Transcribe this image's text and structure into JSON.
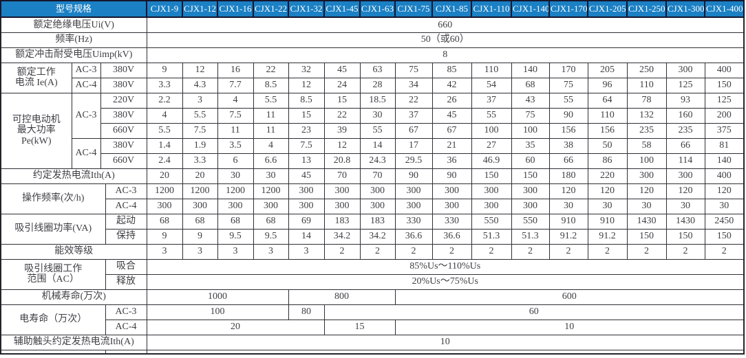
{
  "meta": {
    "description_colors": {
      "header_cell_blue": "#1b80c4",
      "header_gap_dark": "#15152b",
      "grid_border": "#2e2e34",
      "body_text": "#3f3f44",
      "page_bg": "#ffffff"
    }
  },
  "table": {
    "corner_label": "型号规格",
    "models": [
      "CJX1-9",
      "CJX1-12",
      "CJX1-16",
      "CJX1-22",
      "CJX1-32",
      "CJX1-45",
      "CJX1-63",
      "CJX1-75",
      "CJX1-85",
      "CJX1-110",
      "CJX1-140",
      "CJX1-170",
      "CJX1-205",
      "CJX1-250",
      "CJX1-300",
      "CJX1-400"
    ],
    "rows": [
      {
        "cells": [
          {
            "t": "额定绝缘电压Ui(V)",
            "cs": 4,
            "y": "label"
          },
          {
            "t": "660",
            "cs": 16,
            "y": "data"
          }
        ]
      },
      {
        "cells": [
          {
            "t": "频率(Hz)",
            "cs": 4,
            "y": "label"
          },
          {
            "t": "50（或60）",
            "cs": 16,
            "y": "data"
          }
        ]
      },
      {
        "cells": [
          {
            "t": "额定冲击耐受电压Uimp(kV)",
            "cs": 4,
            "y": "label"
          },
          {
            "t": "8",
            "cs": 16,
            "y": "data"
          }
        ]
      },
      {
        "cells": [
          {
            "t": "额定工作\n电流 Ie(A)",
            "rs": 2,
            "y": "label"
          },
          {
            "t": "AC-3",
            "y": "sub"
          },
          {
            "t": "380V",
            "cs": 2,
            "y": "sub"
          },
          "9",
          "12",
          "16",
          "22",
          "32",
          "45",
          "63",
          "75",
          "85",
          "110",
          "140",
          "170",
          "205",
          "250",
          "300",
          "400"
        ]
      },
      {
        "cells": [
          {
            "t": "AC-4",
            "y": "sub"
          },
          {
            "t": "380V",
            "cs": 2,
            "y": "sub"
          },
          "3.3",
          "4.3",
          "7.7",
          "8.5",
          "12",
          "24",
          "28",
          "34",
          "42",
          "54",
          "68",
          "75",
          "96",
          "110",
          "125",
          "150"
        ]
      },
      {
        "cells": [
          {
            "t": "可控电动机\n最大功率\nPe(kW)",
            "rs": 5,
            "y": "label"
          },
          {
            "t": "AC-3",
            "rs": 3,
            "y": "sub"
          },
          {
            "t": "220V",
            "cs": 2,
            "y": "sub"
          },
          "2.2",
          "3",
          "4",
          "5.5",
          "8.5",
          "15",
          "18.5",
          "22",
          "26",
          "37",
          "43",
          "55",
          "64",
          "78",
          "93",
          "125"
        ]
      },
      {
        "cells": [
          {
            "t": "380V",
            "cs": 2,
            "y": "sub"
          },
          "4",
          "5.5",
          "7.5",
          "11",
          "15",
          "22",
          "30",
          "37",
          "45",
          "55",
          "75",
          "90",
          "110",
          "132",
          "160",
          "200"
        ]
      },
      {
        "cells": [
          {
            "t": "660V",
            "cs": 2,
            "y": "sub"
          },
          "5.5",
          "7.5",
          "11",
          "11",
          "23",
          "39",
          "55",
          "67",
          "67",
          "100",
          "100",
          "156",
          "156",
          "235",
          "235",
          "375"
        ]
      },
      {
        "cells": [
          {
            "t": "AC-4",
            "rs": 2,
            "y": "sub"
          },
          {
            "t": "380V",
            "cs": 2,
            "y": "sub"
          },
          "1.4",
          "1.9",
          "3.5",
          "4",
          "7.5",
          "12",
          "14",
          "17",
          "21",
          "27",
          "35",
          "38",
          "50",
          "58",
          "66",
          "81"
        ]
      },
      {
        "cells": [
          {
            "t": "660V",
            "cs": 2,
            "y": "sub"
          },
          "2.4",
          "3.3",
          "6",
          "6.6",
          "13",
          "20.8",
          "24.3",
          "29.5",
          "36",
          "46.9",
          "60",
          "66",
          "86",
          "100",
          "114",
          "140"
        ]
      },
      {
        "cells": [
          {
            "t": "约定发热电流Ith(A)",
            "cs": 4,
            "y": "label"
          },
          "20",
          "20",
          "30",
          "30",
          "45",
          "70",
          "70",
          "90",
          "90",
          "150",
          "150",
          "180",
          "220",
          "300",
          "300",
          "400"
        ]
      },
      {
        "cells": [
          {
            "t": "操作频率(次/h)",
            "cs": 3,
            "rs": 2,
            "y": "label"
          },
          {
            "t": "AC-3",
            "y": "sub"
          },
          "1200",
          "1200",
          "1200",
          "1200",
          "300",
          "300",
          "300",
          "300",
          "300",
          "300",
          "300",
          "120",
          "120",
          "120",
          "120",
          "120"
        ]
      },
      {
        "cells": [
          {
            "t": "AC-4",
            "y": "sub"
          },
          "300",
          "300",
          "300",
          "300",
          "300",
          "300",
          "300",
          "300",
          "300",
          "300",
          "300",
          "30",
          "30",
          "30",
          "30",
          "30"
        ]
      },
      {
        "cells": [
          {
            "t": "吸引线圈功率(VA)",
            "cs": 3,
            "rs": 2,
            "y": "label"
          },
          {
            "t": "起动",
            "y": "sub"
          },
          "68",
          "68",
          "68",
          "68",
          "69",
          "183",
          "183",
          "330",
          "330",
          "550",
          "550",
          "910",
          "910",
          "1430",
          "1430",
          "2450"
        ]
      },
      {
        "cells": [
          {
            "t": "保持",
            "y": "sub"
          },
          "9",
          "9",
          "9.5",
          "9.5",
          "14",
          "34.2",
          "34.2",
          "36.6",
          "36.6",
          "51.3",
          "51.3",
          "91.2",
          "91.2",
          "150",
          "150",
          "150"
        ]
      },
      {
        "cells": [
          {
            "t": "能效等级",
            "cs": 4,
            "y": "label"
          },
          "3",
          "3",
          "3",
          "3",
          "3",
          "2",
          "2",
          "2",
          "2",
          "2",
          "2",
          "2",
          "2",
          "2",
          "2",
          "2"
        ]
      },
      {
        "cells": [
          {
            "t": "吸引线圈工作\n范围（AC）",
            "cs": 3,
            "rs": 2,
            "y": "label"
          },
          {
            "t": "吸合",
            "y": "sub"
          },
          {
            "t": "85%Us～110%Us",
            "cs": 16,
            "y": "data"
          }
        ]
      },
      {
        "cells": [
          {
            "t": "释放",
            "y": "sub"
          },
          {
            "t": "20%Us～75%Us",
            "cs": 16,
            "y": "data"
          }
        ]
      },
      {
        "cells": [
          {
            "t": "机械寿命(万次)",
            "cs": 4,
            "y": "label"
          },
          {
            "t": "1000",
            "cs": 4,
            "y": "data"
          },
          {
            "t": "800",
            "cs": 3,
            "y": "data"
          },
          {
            "t": "600",
            "cs": 9,
            "y": "data"
          }
        ]
      },
      {
        "cells": [
          {
            "t": "电寿命（万次）",
            "cs": 3,
            "rs": 2,
            "y": "label"
          },
          {
            "t": "AC-3",
            "y": "sub"
          },
          {
            "t": "100",
            "cs": 4,
            "y": "data"
          },
          {
            "t": "80",
            "cs": 1,
            "y": "data"
          },
          {
            "t": "60",
            "cs": 11,
            "y": "data"
          }
        ]
      },
      {
        "cells": [
          {
            "t": "AC-4",
            "y": "sub"
          },
          {
            "t": "20",
            "cs": 5,
            "y": "data"
          },
          {
            "t": "15",
            "cs": 2,
            "y": "data"
          },
          {
            "t": "10",
            "cs": 9,
            "y": "data"
          }
        ]
      },
      {
        "cells": [
          {
            "t": "辅助触头约定发热电流Ith(A)",
            "cs": 4,
            "y": "label"
          },
          {
            "t": "10",
            "cs": 16,
            "y": "data"
          }
        ]
      },
      {
        "partial": true,
        "cells": [
          {
            "t": "",
            "cs": 3,
            "y": "label"
          },
          {
            "t": "",
            "cs": 1,
            "y": "sub"
          },
          {
            "t": "",
            "cs": 16,
            "y": "data"
          }
        ]
      }
    ]
  }
}
